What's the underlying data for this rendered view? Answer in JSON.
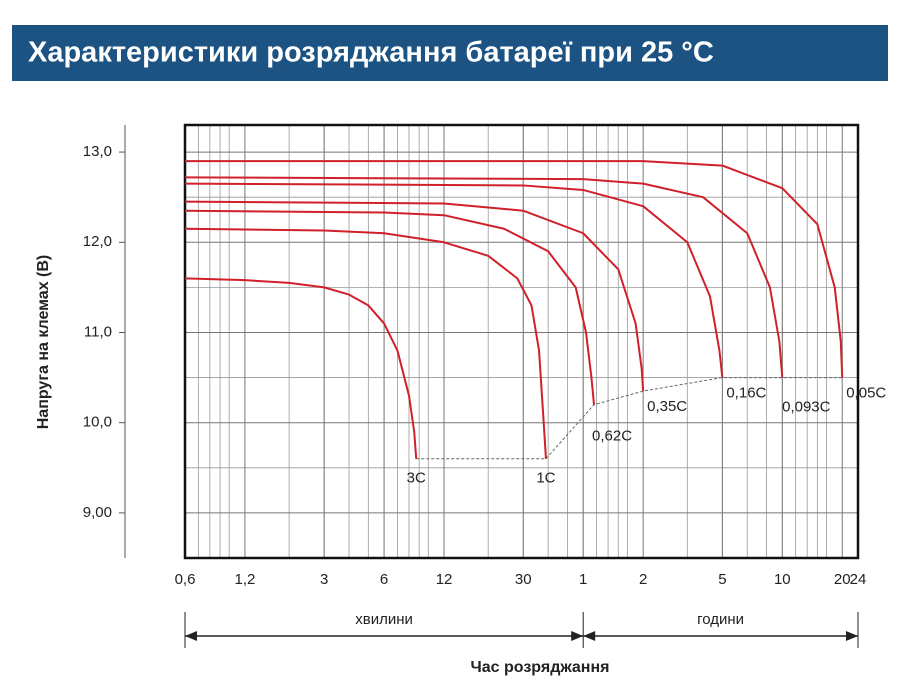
{
  "chart_data": {
    "type": "line",
    "title": "Характеристики розряджання батареї при 25 °C",
    "ylabel": "Напруга на клемах (В)",
    "xlabel": "Час розряджання",
    "minutes_label": "хвилини",
    "hours_label": "години",
    "xscale": "log",
    "grid": true,
    "color": "#d0202a",
    "xlim": [
      0.6,
      1440
    ],
    "xticks": [
      {
        "value": 0.6,
        "label": "0,6"
      },
      {
        "value": 1.2,
        "label": "1,2"
      },
      3,
      6,
      12,
      30,
      {
        "value": 60,
        "label": "1"
      },
      {
        "value": 120,
        "label": "2"
      },
      {
        "value": 300,
        "label": "5"
      },
      {
        "value": 600,
        "label": "10"
      },
      {
        "value": 1200,
        "label": "20"
      },
      {
        "value": 1440,
        "label": "24"
      }
    ],
    "ylim": [
      8.5,
      13.3
    ],
    "yticks": [
      {
        "value": 9,
        "label": "9,00"
      },
      {
        "value": 10,
        "label": "10,0"
      },
      {
        "value": 11,
        "label": "11,0"
      },
      {
        "value": 12,
        "label": "12,0"
      },
      {
        "value": 13,
        "label": "13,0"
      }
    ],
    "series": [
      {
        "name": "3C",
        "x": [
          0.6,
          1.2,
          2,
          3,
          4,
          5,
          6,
          7,
          8,
          8.5,
          8.7
        ],
        "values": [
          11.6,
          11.58,
          11.55,
          11.5,
          11.42,
          11.3,
          11.1,
          10.8,
          10.3,
          9.9,
          9.6
        ]
      },
      {
        "name": "1C",
        "x": [
          0.6,
          3,
          6,
          12,
          20,
          28,
          33,
          36,
          38,
          39
        ],
        "values": [
          12.15,
          12.13,
          12.1,
          12.0,
          11.85,
          11.6,
          11.3,
          10.8,
          10.0,
          9.6
        ]
      },
      {
        "name": "0,62C",
        "x": [
          0.6,
          6,
          12,
          24,
          40,
          55,
          62,
          66,
          68
        ],
        "values": [
          12.35,
          12.33,
          12.3,
          12.15,
          11.9,
          11.5,
          11.0,
          10.5,
          10.2
        ]
      },
      {
        "name": "0,35C",
        "x": [
          0.6,
          12,
          30,
          60,
          90,
          110,
          118,
          120
        ],
        "values": [
          12.45,
          12.43,
          12.35,
          12.1,
          11.7,
          11.1,
          10.6,
          10.35
        ]
      },
      {
        "name": "0,16C",
        "x": [
          0.6,
          30,
          60,
          120,
          200,
          260,
          290,
          300
        ],
        "values": [
          12.65,
          12.63,
          12.58,
          12.4,
          12.0,
          11.4,
          10.8,
          10.5
        ]
      },
      {
        "name": "0,093C",
        "x": [
          0.6,
          60,
          120,
          240,
          400,
          520,
          580,
          600
        ],
        "values": [
          12.72,
          12.7,
          12.65,
          12.5,
          12.1,
          11.5,
          10.9,
          10.5
        ]
      },
      {
        "name": "0,05C",
        "x": [
          0.6,
          120,
          300,
          600,
          900,
          1100,
          1180,
          1200
        ],
        "values": [
          12.9,
          12.9,
          12.85,
          12.6,
          12.2,
          11.5,
          10.9,
          10.5
        ]
      }
    ]
  }
}
